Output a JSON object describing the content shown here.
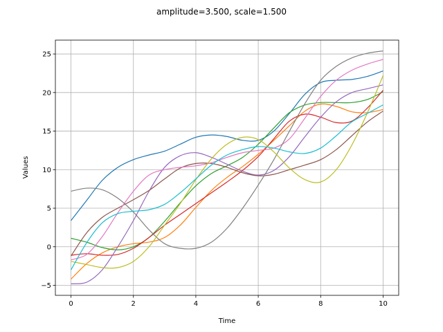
{
  "chart_data": {
    "type": "line",
    "title": "amplitude=3.500, scale=1.500",
    "xlabel": "Time",
    "ylabel": "Values",
    "xlim": [
      -0.5,
      10.5
    ],
    "ylim": [
      -6.3,
      26.8
    ],
    "xticks": [
      0,
      2,
      4,
      6,
      8,
      10
    ],
    "yticks": [
      -5,
      0,
      5,
      10,
      15,
      20,
      25
    ],
    "grid": true,
    "series": [
      {
        "color": "#1f77b4",
        "x": [
          0,
          0.5,
          1,
          1.5,
          2,
          2.5,
          3,
          3.5,
          4,
          4.5,
          5,
          5.5,
          6,
          6.5,
          7,
          7.5,
          8,
          8.5,
          9,
          9.5,
          10
        ],
        "y": [
          3.4,
          6.0,
          8.6,
          10.3,
          11.3,
          11.9,
          12.4,
          13.3,
          14.2,
          14.5,
          14.3,
          13.8,
          13.8,
          15.0,
          17.3,
          19.8,
          21.3,
          21.6,
          21.7,
          22.1,
          22.8
        ]
      },
      {
        "color": "#ff7f0e",
        "x": [
          0,
          0.5,
          1,
          1.5,
          2,
          2.5,
          3,
          3.5,
          4,
          4.5,
          5,
          5.5,
          6,
          6.5,
          7,
          7.5,
          8,
          8.5,
          9,
          9.5,
          10
        ],
        "y": [
          -4.2,
          -2.2,
          -0.8,
          0.0,
          0.4,
          0.6,
          1.2,
          2.8,
          5.1,
          7.3,
          9.0,
          10.4,
          12.0,
          13.8,
          15.7,
          17.6,
          18.5,
          18.2,
          17.5,
          17.4,
          17.8
        ]
      },
      {
        "color": "#2ca02c",
        "x": [
          0,
          0.5,
          1,
          1.5,
          2,
          2.5,
          3,
          3.5,
          4,
          4.5,
          5,
          5.5,
          6,
          6.5,
          7,
          7.5,
          8,
          8.5,
          9,
          9.5,
          10
        ],
        "y": [
          1.1,
          0.6,
          -0.1,
          -0.4,
          0.0,
          1.2,
          3.3,
          5.7,
          7.9,
          9.5,
          10.5,
          11.6,
          13.3,
          15.4,
          17.4,
          18.4,
          18.7,
          18.7,
          18.7,
          19.1,
          20.1
        ]
      },
      {
        "color": "#d62728",
        "x": [
          0,
          0.5,
          1,
          1.5,
          2,
          2.5,
          3,
          3.5,
          4,
          4.5,
          5,
          5.5,
          6,
          6.5,
          7,
          7.5,
          8,
          8.5,
          9,
          9.5,
          10
        ],
        "y": [
          -1.1,
          -0.9,
          -1.1,
          -1.0,
          -0.2,
          1.2,
          2.8,
          4.2,
          5.6,
          7.0,
          8.4,
          9.9,
          11.7,
          14.0,
          16.3,
          17.2,
          16.8,
          16.1,
          16.3,
          18.0,
          20.3
        ]
      },
      {
        "color": "#9467bd",
        "x": [
          0,
          0.5,
          1,
          1.5,
          2,
          2.5,
          3,
          3.5,
          4,
          4.5,
          5,
          5.5,
          6,
          6.5,
          7,
          7.5,
          8,
          8.5,
          9,
          9.5,
          10
        ],
        "y": [
          -4.8,
          -4.6,
          -3.0,
          0.0,
          3.4,
          7.2,
          10.3,
          11.8,
          12.2,
          11.6,
          10.7,
          9.8,
          9.3,
          9.9,
          11.7,
          14.3,
          16.8,
          18.8,
          20.0,
          20.5,
          21.0
        ]
      },
      {
        "color": "#8c564b",
        "x": [
          0,
          0.5,
          1,
          1.5,
          2,
          2.5,
          3,
          3.5,
          4,
          4.5,
          5,
          5.5,
          6,
          6.5,
          7,
          7.5,
          8,
          8.5,
          9,
          9.5,
          10
        ],
        "y": [
          -1.2,
          1.8,
          3.8,
          5.0,
          6.1,
          7.3,
          8.8,
          10.2,
          10.8,
          10.8,
          10.3,
          9.6,
          9.2,
          9.4,
          10.0,
          10.6,
          11.3,
          12.6,
          14.4,
          16.2,
          17.6
        ]
      },
      {
        "color": "#e377c2",
        "x": [
          0,
          0.5,
          1,
          1.5,
          2,
          2.5,
          3,
          3.5,
          4,
          4.5,
          5,
          5.5,
          6,
          6.5,
          7,
          7.5,
          8,
          8.5,
          9,
          9.5,
          10
        ],
        "y": [
          -1.7,
          -1.0,
          1.3,
          4.4,
          7.2,
          9.3,
          10.0,
          10.3,
          10.5,
          10.9,
          11.6,
          12.2,
          12.5,
          12.8,
          14.0,
          16.7,
          19.5,
          21.6,
          22.9,
          23.7,
          24.3
        ]
      },
      {
        "color": "#7f7f7f",
        "x": [
          0,
          0.5,
          1,
          1.5,
          2,
          2.5,
          3,
          3.5,
          4,
          4.5,
          5,
          5.5,
          6,
          6.5,
          7,
          7.5,
          8,
          8.5,
          9,
          9.5,
          10
        ],
        "y": [
          7.2,
          7.6,
          7.4,
          6.3,
          4.5,
          2.2,
          0.4,
          -0.2,
          -0.2,
          0.6,
          2.4,
          5.0,
          8.0,
          11.3,
          15.0,
          18.6,
          21.6,
          23.4,
          24.5,
          25.1,
          25.4
        ]
      },
      {
        "color": "#bcbd22",
        "x": [
          0,
          0.5,
          1,
          1.5,
          2,
          2.5,
          3,
          3.5,
          4,
          4.5,
          5,
          5.5,
          6,
          6.5,
          7,
          7.5,
          8,
          8.5,
          9,
          9.5,
          10
        ],
        "y": [
          -1.9,
          -2.3,
          -2.7,
          -2.7,
          -1.9,
          0.0,
          2.8,
          5.6,
          8.7,
          11.4,
          13.3,
          14.2,
          13.9,
          12.3,
          10.2,
          8.7,
          8.4,
          10.0,
          13.2,
          17.4,
          22.2
        ]
      },
      {
        "color": "#17becf",
        "x": [
          0,
          0.5,
          1,
          1.5,
          2,
          2.5,
          3,
          3.5,
          4,
          4.5,
          5,
          5.5,
          6,
          6.5,
          7,
          7.5,
          8,
          8.5,
          9,
          9.5,
          10
        ],
        "y": [
          -3.0,
          0.5,
          3.1,
          4.3,
          4.6,
          4.8,
          5.5,
          7.0,
          8.8,
          10.6,
          11.9,
          12.6,
          13.0,
          12.8,
          12.3,
          12.1,
          12.8,
          14.4,
          16.2,
          17.3,
          18.4
        ]
      }
    ]
  }
}
